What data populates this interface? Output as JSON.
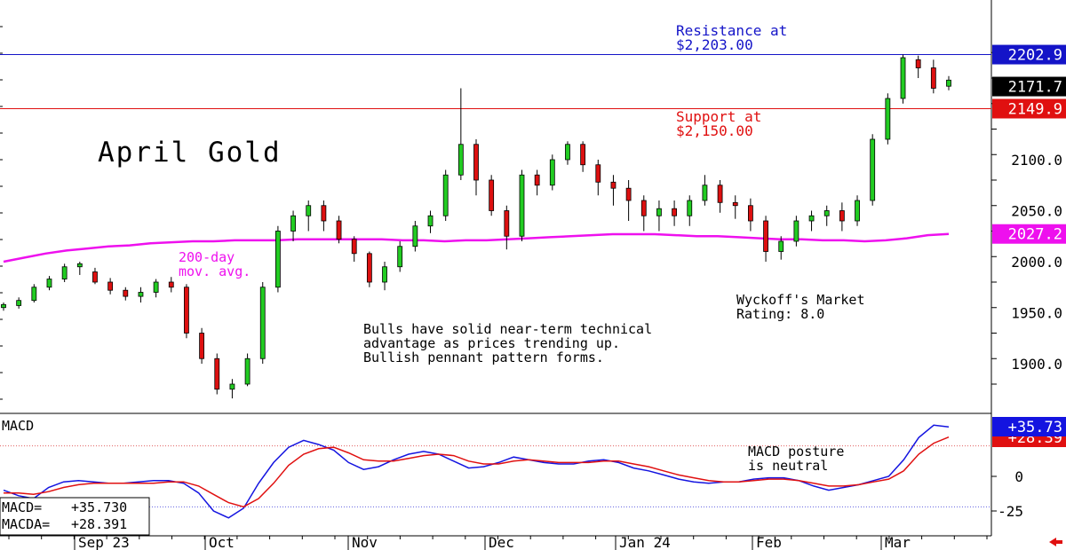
{
  "chart_data": [
    {
      "type": "candlestick",
      "title": "April Gold",
      "y_ticks": [
        1900,
        1950,
        2000,
        2050,
        2100
      ],
      "y_tick_labels": [
        "1900.0",
        "1950.0",
        "2000.0",
        "2050.0",
        "2100.0"
      ],
      "ylim": [
        1860,
        2240
      ],
      "x_labels": [
        "Sep 23",
        "Oct",
        "Nov",
        "Dec",
        "Jan 24",
        "Feb",
        "Mar"
      ],
      "resistance": {
        "value": 2203.0,
        "label": "Resistance at\n$2,203.00",
        "tag": "2202.9",
        "color": "#1414c8"
      },
      "support": {
        "value": 2150.0,
        "label": "Support at\n$2,150.00",
        "tag": "2149.9",
        "color": "#e01010"
      },
      "last_price": {
        "value": 2171.7,
        "tag": "2171.7"
      },
      "moving_average": {
        "name": "200-day\nmov. avg.",
        "tag": "2027.2",
        "color": "#ee10ee",
        "values": [
          2000,
          2004,
          2008,
          2011,
          2013,
          2015,
          2016,
          2018,
          2019,
          2020,
          2020,
          2021,
          2021,
          2021,
          2022,
          2022,
          2022,
          2022,
          2022,
          2021,
          2021,
          2020,
          2021,
          2021,
          2022,
          2023,
          2024,
          2025,
          2026,
          2027,
          2027,
          2027,
          2026,
          2025,
          2025,
          2024,
          2023,
          2022,
          2022,
          2021,
          2021,
          2020,
          2021,
          2023,
          2026,
          2027.2
        ]
      },
      "candles": [
        [
          1955,
          1958,
          1952,
          1960
        ],
        [
          1957,
          1962,
          1954,
          1965
        ],
        [
          1962,
          1975,
          1960,
          1978
        ],
        [
          1975,
          1983,
          1972,
          1986
        ],
        [
          1983,
          1995,
          1980,
          1998
        ],
        [
          1995,
          1998,
          1987,
          2000
        ],
        [
          1990,
          1980,
          1978,
          1994
        ],
        [
          1980,
          1972,
          1968,
          1984
        ],
        [
          1972,
          1966,
          1962,
          1975
        ],
        [
          1966,
          1970,
          1960,
          1975
        ],
        [
          1970,
          1980,
          1965,
          1983
        ],
        [
          1980,
          1975,
          1970,
          1985
        ],
        [
          1975,
          1930,
          1925,
          1978
        ],
        [
          1930,
          1905,
          1900,
          1935
        ],
        [
          1905,
          1875,
          1870,
          1910
        ],
        [
          1875,
          1880,
          1866,
          1885
        ],
        [
          1880,
          1905,
          1878,
          1910
        ],
        [
          1905,
          1975,
          1900,
          1980
        ],
        [
          1975,
          2030,
          1970,
          2035
        ],
        [
          2030,
          2045,
          2020,
          2050
        ],
        [
          2045,
          2055,
          2030,
          2060
        ],
        [
          2055,
          2040,
          2030,
          2060
        ],
        [
          2040,
          2022,
          2018,
          2045
        ],
        [
          2022,
          2008,
          2000,
          2025
        ],
        [
          2008,
          1980,
          1975,
          2010
        ],
        [
          1980,
          1995,
          1972,
          2000
        ],
        [
          1995,
          2015,
          1990,
          2020
        ],
        [
          2015,
          2035,
          2010,
          2040
        ],
        [
          2035,
          2045,
          2028,
          2050
        ],
        [
          2045,
          2085,
          2040,
          2090
        ],
        [
          2085,
          2115,
          2080,
          2170
        ],
        [
          2115,
          2080,
          2065,
          2120
        ],
        [
          2080,
          2050,
          2045,
          2085
        ],
        [
          2050,
          2025,
          2012,
          2055
        ],
        [
          2025,
          2085,
          2020,
          2090
        ],
        [
          2085,
          2075,
          2065,
          2090
        ],
        [
          2075,
          2100,
          2070,
          2105
        ],
        [
          2100,
          2115,
          2095,
          2118
        ],
        [
          2115,
          2095,
          2088,
          2118
        ],
        [
          2095,
          2078,
          2065,
          2100
        ],
        [
          2078,
          2072,
          2055,
          2085
        ],
        [
          2072,
          2060,
          2040,
          2080
        ],
        [
          2060,
          2045,
          2030,
          2065
        ],
        [
          2045,
          2052,
          2030,
          2060
        ],
        [
          2052,
          2045,
          2035,
          2060
        ],
        [
          2045,
          2060,
          2035,
          2065
        ],
        [
          2060,
          2075,
          2055,
          2085
        ],
        [
          2075,
          2058,
          2048,
          2080
        ],
        [
          2058,
          2055,
          2042,
          2065
        ],
        [
          2055,
          2040,
          2030,
          2062
        ],
        [
          2040,
          2010,
          2000,
          2045
        ],
        [
          2010,
          2020,
          2002,
          2025
        ],
        [
          2020,
          2040,
          2015,
          2045
        ],
        [
          2040,
          2045,
          2030,
          2050
        ],
        [
          2045,
          2050,
          2035,
          2055
        ],
        [
          2050,
          2040,
          2030,
          2058
        ],
        [
          2040,
          2060,
          2035,
          2065
        ],
        [
          2060,
          2120,
          2055,
          2125
        ],
        [
          2120,
          2160,
          2115,
          2165
        ],
        [
          2160,
          2200,
          2155,
          2203
        ],
        [
          2198,
          2190,
          2180,
          2202
        ],
        [
          2190,
          2170,
          2165,
          2198
        ],
        [
          2172,
          2178,
          2168,
          2182
        ]
      ]
    },
    {
      "type": "line",
      "title": "MACD",
      "y_ticks": [
        0,
        -25
      ],
      "y_tick_labels": [
        "0",
        "-25"
      ],
      "ylim": [
        -35,
        50
      ],
      "reference_lines": [
        22,
        -22
      ],
      "series": [
        {
          "name": "MACD",
          "color": "#1414e0",
          "tag": "+35.73",
          "values": [
            -10,
            -14,
            -16,
            -8,
            -4,
            -3,
            -4,
            -5,
            -5,
            -4,
            -3,
            -3,
            -5,
            -12,
            -25,
            -30,
            -23,
            -5,
            10,
            21,
            26,
            23,
            19,
            10,
            5,
            7,
            12,
            16,
            18,
            16,
            11,
            6,
            7,
            10,
            14,
            12,
            10,
            9,
            9,
            11,
            12,
            10,
            6,
            4,
            1,
            -2,
            -4,
            -5,
            -4,
            -4,
            -2,
            -1,
            -1,
            -3,
            -7,
            -10,
            -8,
            -6,
            -3,
            0,
            12,
            28,
            37,
            35.73
          ]
        },
        {
          "name": "MACDA",
          "color": "#e01010",
          "tag": "+28.39",
          "values": [
            -12,
            -12,
            -13,
            -11,
            -8,
            -6,
            -5,
            -5,
            -5,
            -5,
            -5,
            -4,
            -4,
            -7,
            -13,
            -19,
            -22,
            -16,
            -5,
            8,
            16,
            20,
            21,
            17,
            12,
            11,
            11,
            13,
            15,
            16,
            15,
            11,
            9,
            9,
            11,
            12,
            11,
            10,
            10,
            10,
            11,
            11,
            9,
            7,
            4,
            1,
            -1,
            -3,
            -4,
            -4,
            -3,
            -2,
            -2,
            -3,
            -5,
            -7,
            -7,
            -6,
            -4,
            -2,
            4,
            16,
            24,
            28.391
          ]
        }
      ],
      "readout": {
        "macd_label": "MACD=",
        "macd_value": "+35.730",
        "macda_label": "MACDA=",
        "macda_value": "+28.391"
      }
    }
  ],
  "annotations": {
    "wyckoff": "Wyckoff's Market\nRating: 8.0",
    "bulls": "Bulls have solid near-term technical\nadvantage as prices trending up.\nBullish pennant pattern forms.",
    "macd_posture": "MACD posture\nis neutral"
  },
  "colors": {
    "up": "#22cc22",
    "down": "#dd1010",
    "wick": "#000000",
    "magenta": "#ee10ee",
    "blue": "#1414c8",
    "red": "#e01010",
    "arrow": "#e01010"
  }
}
